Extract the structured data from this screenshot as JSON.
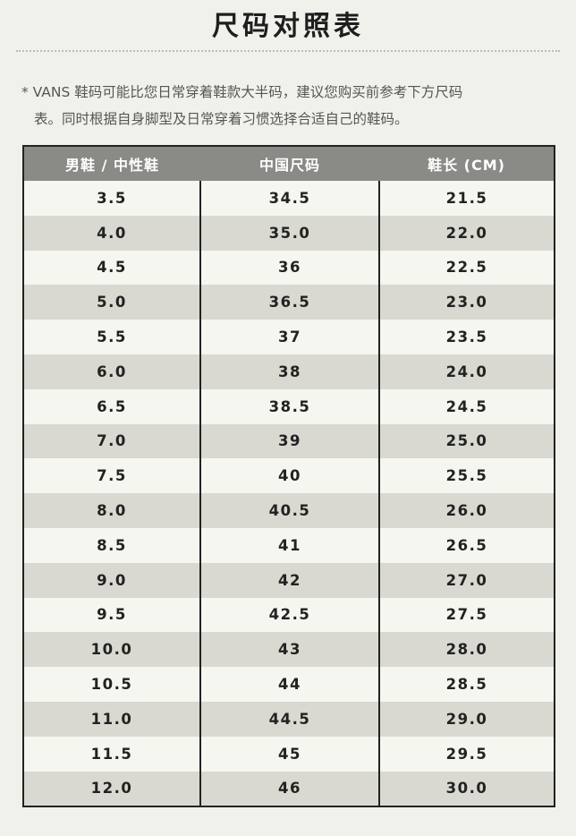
{
  "title": "尺码对照表",
  "note": {
    "line1": "* VANS 鞋码可能比您日常穿着鞋款大半码，建议您购买前参考下方尺码",
    "line2": "表。同时根据自身脚型及日常穿着习惯选择合适自己的鞋码。"
  },
  "table": {
    "headers": [
      "男鞋 / 中性鞋",
      "中国尺码",
      "鞋长 (CM)"
    ],
    "rows": [
      [
        "3.5",
        "34.5",
        "21.5"
      ],
      [
        "4.0",
        "35.0",
        "22.0"
      ],
      [
        "4.5",
        "36",
        "22.5"
      ],
      [
        "5.0",
        "36.5",
        "23.0"
      ],
      [
        "5.5",
        "37",
        "23.5"
      ],
      [
        "6.0",
        "38",
        "24.0"
      ],
      [
        "6.5",
        "38.5",
        "24.5"
      ],
      [
        "7.0",
        "39",
        "25.0"
      ],
      [
        "7.5",
        "40",
        "25.5"
      ],
      [
        "8.0",
        "40.5",
        "26.0"
      ],
      [
        "8.5",
        "41",
        "26.5"
      ],
      [
        "9.0",
        "42",
        "27.0"
      ],
      [
        "9.5",
        "42.5",
        "27.5"
      ],
      [
        "10.0",
        "43",
        "28.0"
      ],
      [
        "10.5",
        "44",
        "28.5"
      ],
      [
        "11.0",
        "44.5",
        "29.0"
      ],
      [
        "11.5",
        "45",
        "29.5"
      ],
      [
        "12.0",
        "46",
        "30.0"
      ]
    ]
  },
  "colors": {
    "background": "#f1f1ec",
    "header_bg": "#8a8a86",
    "row_light": "#f6f6f1",
    "row_dark": "#d9d9d2",
    "border": "#222222"
  }
}
